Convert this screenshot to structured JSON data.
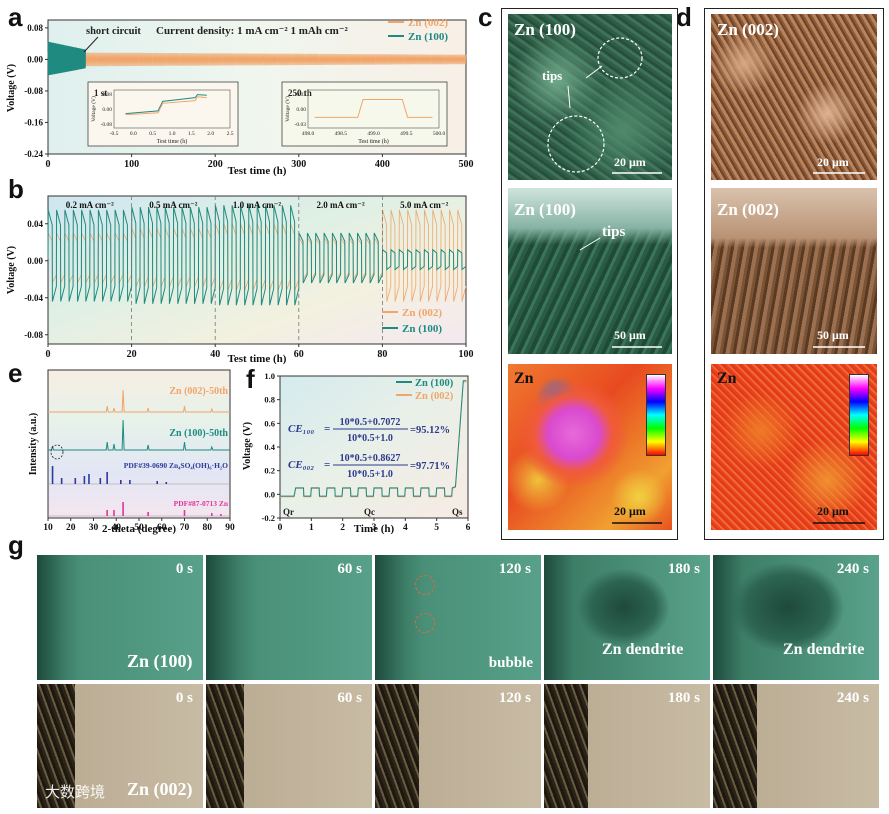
{
  "panel_labels": {
    "a": "a",
    "b": "b",
    "c": "c",
    "d": "d",
    "e": "e",
    "f": "f",
    "g": "g"
  },
  "chart_data": [
    {
      "id": "a",
      "type": "line",
      "title": "Current density: 1 mA cm⁻²  1 mAh cm⁻²",
      "xlabel": "Test time (h)",
      "ylabel": "Voltage (V)",
      "xlim": [
        0,
        500
      ],
      "ylim": [
        -0.24,
        0.1
      ],
      "xticks": [
        "0",
        "100",
        "200",
        "300",
        "400",
        "500"
      ],
      "yticks": [
        "0.08",
        "0.00",
        "-0.08",
        "-0.16",
        "-0.24"
      ],
      "series": [
        {
          "name": "Zn (002)",
          "color": "#f0a56a"
        },
        {
          "name": "Zn (100)",
          "color": "#1e8a80"
        }
      ],
      "annotation": "short circuit",
      "insets": [
        {
          "label": "1 st",
          "xlabel": "Test time (h)",
          "ylabel": "Voltage (V)",
          "xticks": [
            "-0.5",
            "0.0",
            "0.5",
            "1.0",
            "1.5",
            "2.0",
            "2.5"
          ],
          "yticks": [
            "0.08",
            "0.00",
            "-0.08"
          ]
        },
        {
          "label": "250 th",
          "xlabel": "Test time (h)",
          "ylabel": "Voltage (V)",
          "xticks": [
            "498.0",
            "498.5",
            "499.0",
            "499.5",
            "500.0"
          ],
          "yticks": [
            "0.03",
            "0.00",
            "-0.03"
          ]
        }
      ]
    },
    {
      "id": "b",
      "type": "line",
      "xlabel": "Test time (h)",
      "ylabel": "Voltage (V)",
      "xlim": [
        0,
        100
      ],
      "ylim": [
        -0.09,
        0.07
      ],
      "xticks": [
        "0",
        "20",
        "40",
        "60",
        "80",
        "100"
      ],
      "yticks": [
        "0.04",
        "0.00",
        "-0.04",
        "-0.08"
      ],
      "segments": [
        "0.2 mA cm⁻²",
        "0.5 mA cm⁻²",
        "1.0 mA cm⁻²",
        "2.0 mA cm⁻²",
        "5.0 mA cm⁻²"
      ],
      "series": [
        {
          "name": "Zn (002)",
          "color": "#f0a56a"
        },
        {
          "name": "Zn (100)",
          "color": "#1e8a80"
        }
      ]
    },
    {
      "id": "e",
      "type": "bar",
      "xlabel": "2-theta (degree)",
      "ylabel": "Intensity (a.u.)",
      "xlim": [
        10,
        90
      ],
      "xticks": [
        "10",
        "20",
        "30",
        "40",
        "50",
        "60",
        "70",
        "80",
        "90"
      ],
      "traces": [
        {
          "name": "Zn (002)-50th",
          "color": "#f0a56a"
        },
        {
          "name": "Zn (100)-50th",
          "color": "#1e8a80"
        },
        {
          "name": "PDF#39-0690 Zn₄SO₄(OH)₆·H₂O",
          "color": "#2b3a9e"
        },
        {
          "name": "PDF#87-0713 Zn",
          "color": "#e0359a"
        }
      ]
    },
    {
      "id": "f",
      "type": "line",
      "xlabel": "Time (h)",
      "ylabel": "Voltage (V)",
      "xlim": [
        0,
        6
      ],
      "ylim": [
        -0.2,
        1.0
      ],
      "xticks": [
        "0",
        "1",
        "2",
        "3",
        "4",
        "5",
        "6"
      ],
      "yticks": [
        "1.0",
        "0.8",
        "0.6",
        "0.4",
        "0.2",
        "0.0",
        "-0.2"
      ],
      "axis_marks": [
        "Qr",
        "Qc",
        "Qs"
      ],
      "series": [
        {
          "name": "Zn (100)",
          "color": "#1e8a80"
        },
        {
          "name": "Zn (002)",
          "color": "#f0a56a"
        }
      ],
      "equations": [
        {
          "lhs": "CE₁₀₀",
          "num": "10*0.5+0.7072",
          "den": "10*0.5+1.0",
          "result": "=95.12%"
        },
        {
          "lhs": "CE₀₀₂",
          "num": "10*0.5+0.8627",
          "den": "10*0.5+1.0",
          "result": "=97.71%"
        }
      ]
    }
  ],
  "panel_c": {
    "img1": {
      "label": "Zn (100)",
      "annotation": "tips",
      "scale": "20 μm"
    },
    "img2": {
      "label": "Zn (100)",
      "annotation": "tips",
      "scale": "50 μm"
    },
    "img3": {
      "label": "Zn",
      "scale": "20 μm"
    }
  },
  "panel_d": {
    "img1": {
      "label": "Zn (002)",
      "scale": "20 μm"
    },
    "img2": {
      "label": "Zn (002)",
      "scale": "50 μm"
    },
    "img3": {
      "label": "Zn",
      "scale": "20 μm"
    }
  },
  "panel_g": {
    "row1_label": "Zn (100)",
    "row2_label": "Zn (002)",
    "times": [
      "0 s",
      "60 s",
      "120 s",
      "180 s",
      "240 s"
    ],
    "row1_notes": [
      "",
      "",
      "bubble",
      "Zn dendrite",
      "Zn dendrite"
    ],
    "watermark": "大数跨境"
  }
}
